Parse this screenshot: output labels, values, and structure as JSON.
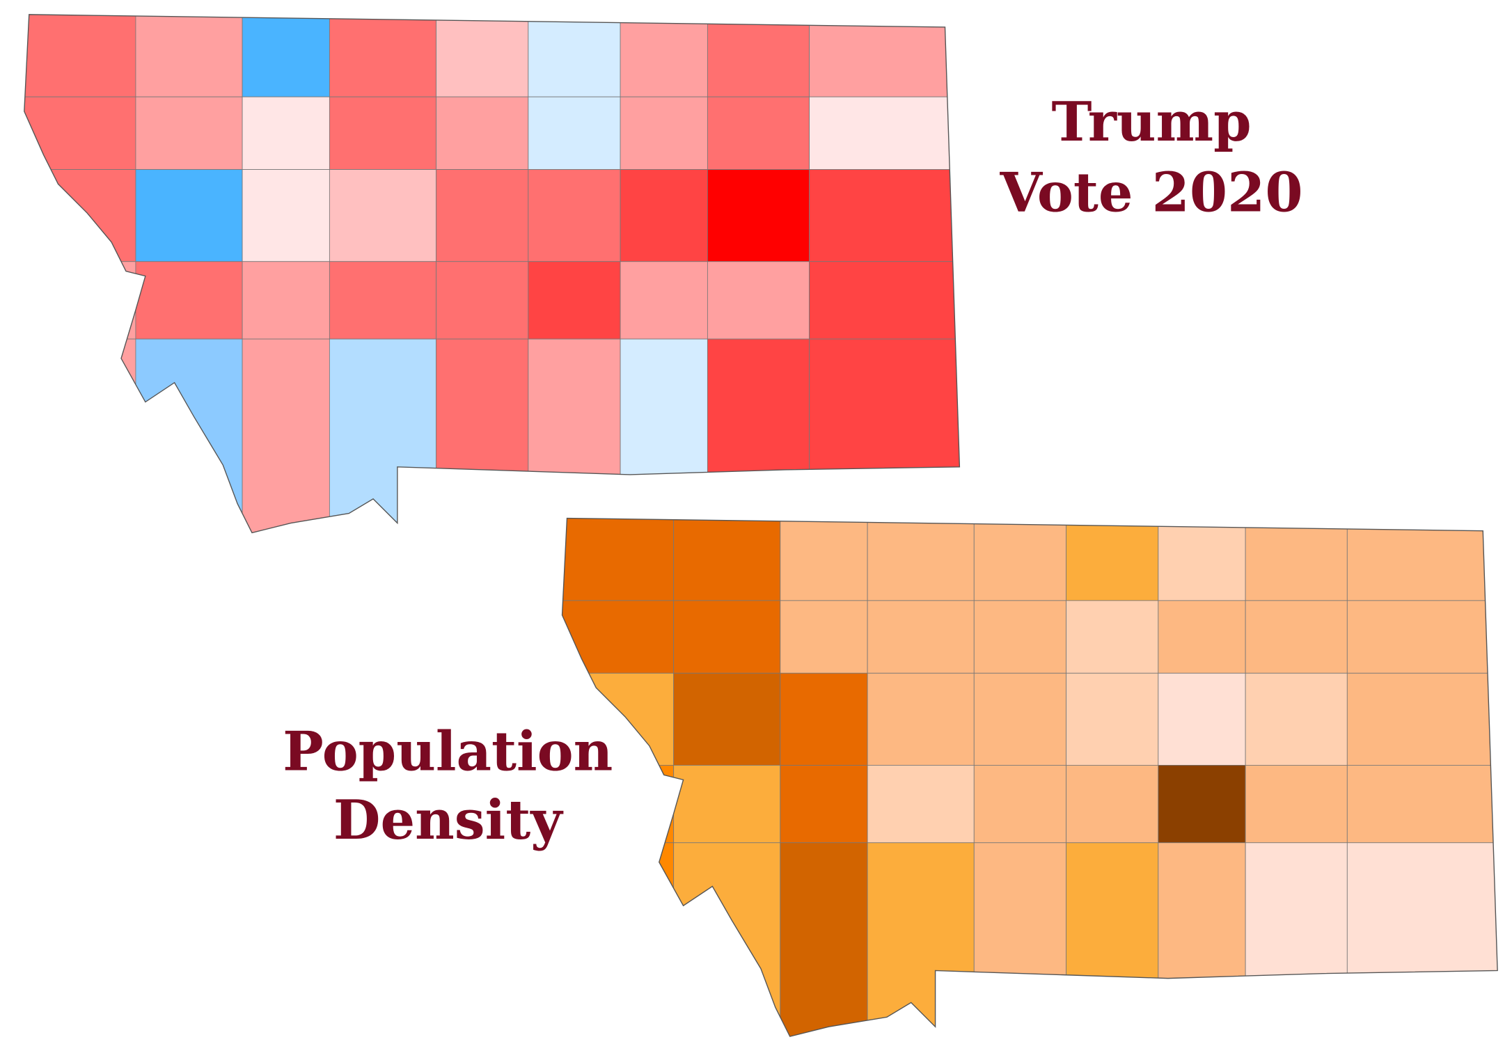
{
  "title_top": {
    "line1": "Trump",
    "line2": "Vote 2020"
  },
  "title_bottom": {
    "line1": "Population",
    "line2": "Density"
  }
}
